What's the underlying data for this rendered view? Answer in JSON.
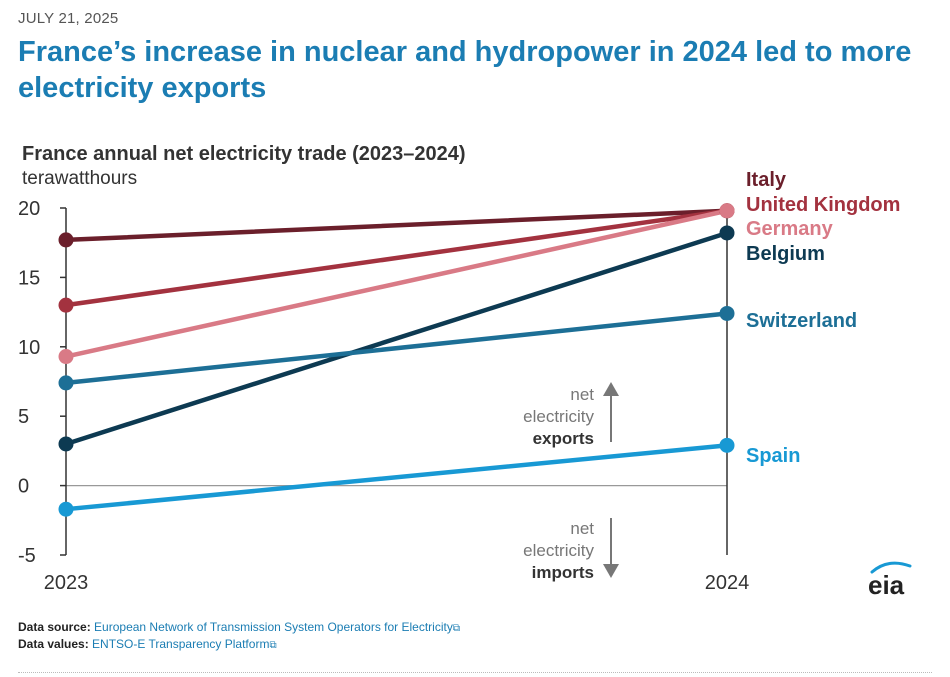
{
  "date": "JULY 21, 2025",
  "headline": "France’s increase in nuclear and hydropower in 2024 led to more electricity exports",
  "chart_data": {
    "type": "line",
    "title": "France annual net electricity trade (2023–2024)",
    "ylabel": "terawatthours",
    "xlabel": "",
    "x": [
      "2023",
      "2024"
    ],
    "ylim": [
      -5,
      20
    ],
    "yticks": [
      20,
      15,
      10,
      5,
      0,
      -5
    ],
    "series": [
      {
        "name": "Italy",
        "values": [
          17.7,
          19.8
        ],
        "color": "#6b1f2b"
      },
      {
        "name": "United Kingdom",
        "values": [
          13.0,
          19.8
        ],
        "color": "#a3323f"
      },
      {
        "name": "Germany",
        "values": [
          9.3,
          19.8
        ],
        "color": "#d97a86"
      },
      {
        "name": "Belgium",
        "values": [
          3.0,
          18.2
        ],
        "color": "#0d3a52"
      },
      {
        "name": "Switzerland",
        "values": [
          7.4,
          12.4
        ],
        "color": "#1d6f96"
      },
      {
        "name": "Spain",
        "values": [
          -1.7,
          2.9
        ],
        "color": "#1899d4"
      }
    ],
    "annotations": {
      "exports": {
        "line1": "net",
        "line2": "electricity",
        "line3": "exports"
      },
      "imports": {
        "line1": "net",
        "line2": "electricity",
        "line3": "imports"
      }
    }
  },
  "source": {
    "data_source_label": "Data source:",
    "data_source_text": "European Network of Transmission System Operators for Electricity",
    "data_values_label": "Data values:",
    "data_values_text": "ENTSO-E Transparency Platform",
    "external_glyph": "⧉"
  },
  "logo_text": "eia",
  "colors": {
    "accent": "#1b7db3",
    "axis": "#333333"
  }
}
